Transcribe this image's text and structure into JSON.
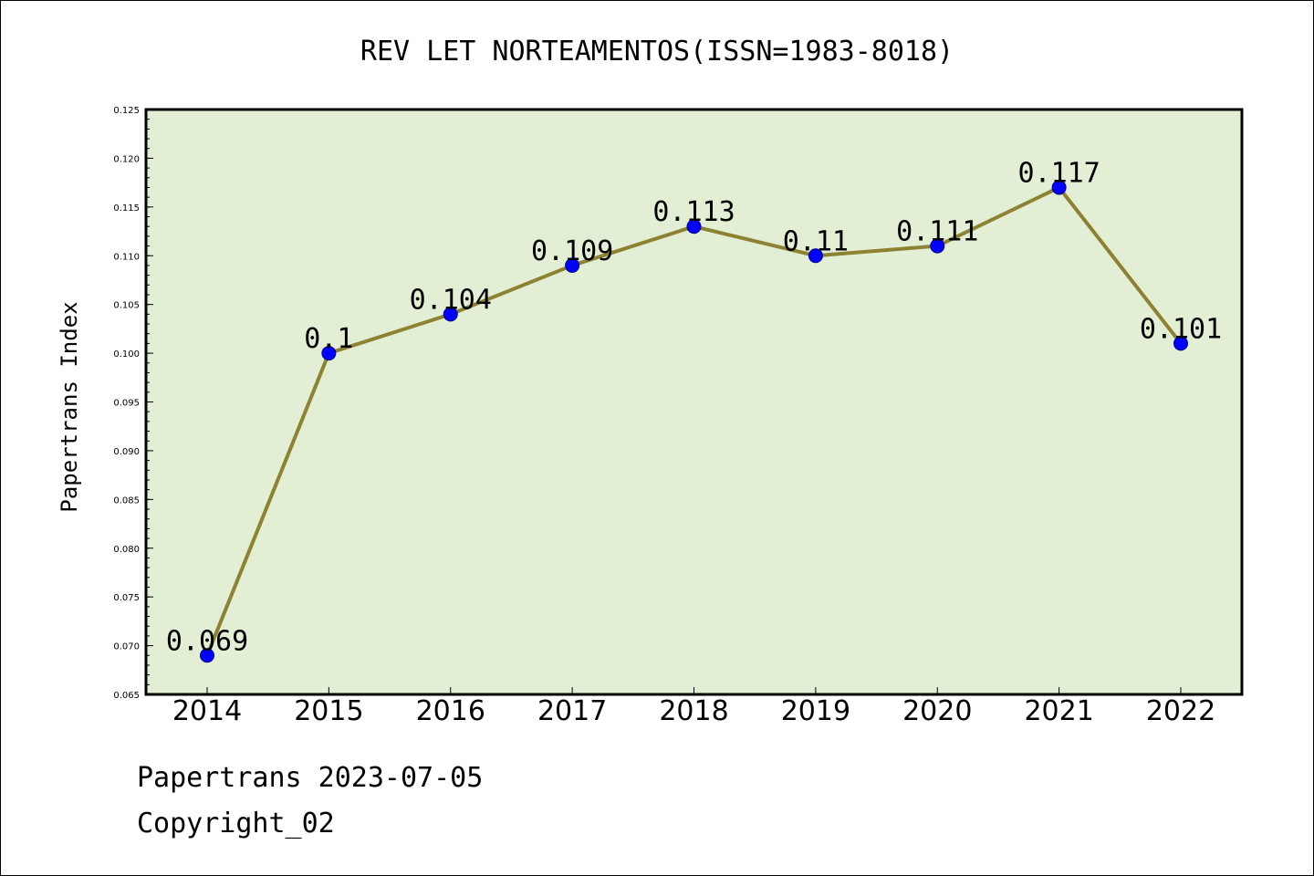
{
  "chart_data": {
    "type": "line",
    "title": "REV LET NORTEAMENTOS(ISSN=1983-8018)",
    "xlabel": "",
    "ylabel": "Papertrans Index",
    "categories": [
      "2014",
      "2015",
      "2016",
      "2017",
      "2018",
      "2019",
      "2020",
      "2021",
      "2022"
    ],
    "series": [
      {
        "values": [
          0.069,
          0.1,
          0.104,
          0.109,
          0.113,
          0.11,
          0.111,
          0.117,
          0.101
        ],
        "labels": [
          "0.069",
          "0.1",
          "0.104",
          "0.109",
          "0.113",
          "0.11",
          "0.111",
          "0.117",
          "0.101"
        ]
      }
    ],
    "ylim": [
      0.065,
      0.125
    ],
    "yticks": [
      "0.065",
      "0.070",
      "0.075",
      "0.080",
      "0.085",
      "0.090",
      "0.095",
      "0.100",
      "0.105",
      "0.110",
      "0.115",
      "0.120",
      "0.125"
    ],
    "grid": false,
    "colors": {
      "plot_background": "#e2efd5",
      "line": "#8c8232",
      "marker": "#0000ff",
      "marker_edge": "#00008b"
    }
  },
  "footer": {
    "date_text": "Papertrans 2023-07-05",
    "copyright_text": "Copyright_02"
  }
}
